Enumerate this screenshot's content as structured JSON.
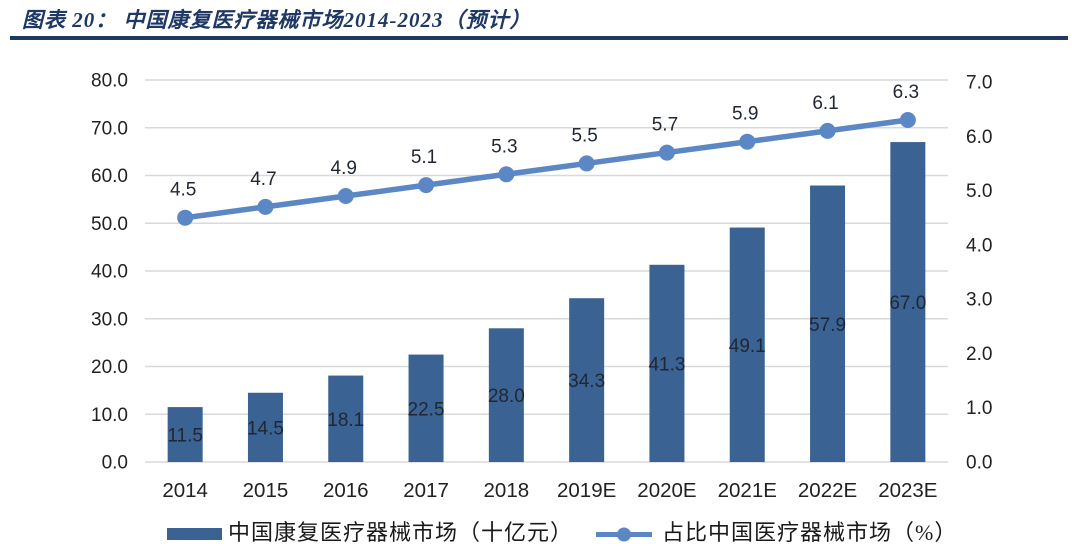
{
  "header": {
    "title": "图表 20： 中国康复医疗器械市场2014-2023（预计）"
  },
  "chart_data": {
    "type": "bar+line combo",
    "title": "中国康复医疗器械市场2014-2023（预计）",
    "categories": [
      "2014",
      "2015",
      "2016",
      "2017",
      "2018",
      "2019E",
      "2020E",
      "2021E",
      "2022E",
      "2023E"
    ],
    "series": [
      {
        "name": "中国康复医疗器械市场（十亿元）",
        "type": "bar",
        "axis": "left",
        "values": [
          11.5,
          14.5,
          18.1,
          22.5,
          28.0,
          34.3,
          41.3,
          49.1,
          57.9,
          67.0
        ]
      },
      {
        "name": "占比中国医疗器械市场（%）",
        "type": "line",
        "axis": "right",
        "values": [
          4.5,
          4.7,
          4.9,
          5.1,
          5.3,
          5.5,
          5.7,
          5.9,
          6.1,
          6.3
        ]
      }
    ],
    "left_axis": {
      "min": 0,
      "max": 80,
      "step": 10,
      "tick_format": "one_decimal"
    },
    "right_axis": {
      "min": 0,
      "max": 7,
      "step": 1,
      "tick_format": "one_decimal"
    },
    "grid": "horizontal",
    "legend_position": "bottom",
    "data_labels": "shown"
  },
  "legend": {
    "bar_label": "中国康复医疗器械市场（十亿元）",
    "line_label": "占比中国医疗器械市场（%）"
  },
  "colors": {
    "bar": "#3A6292",
    "line": "#5B87C5",
    "title": "#1F3864",
    "grid": "#D9D9D9",
    "tick_text": "#212121",
    "data_label_text": "#1F2733",
    "x_label_text": "#212121"
  }
}
